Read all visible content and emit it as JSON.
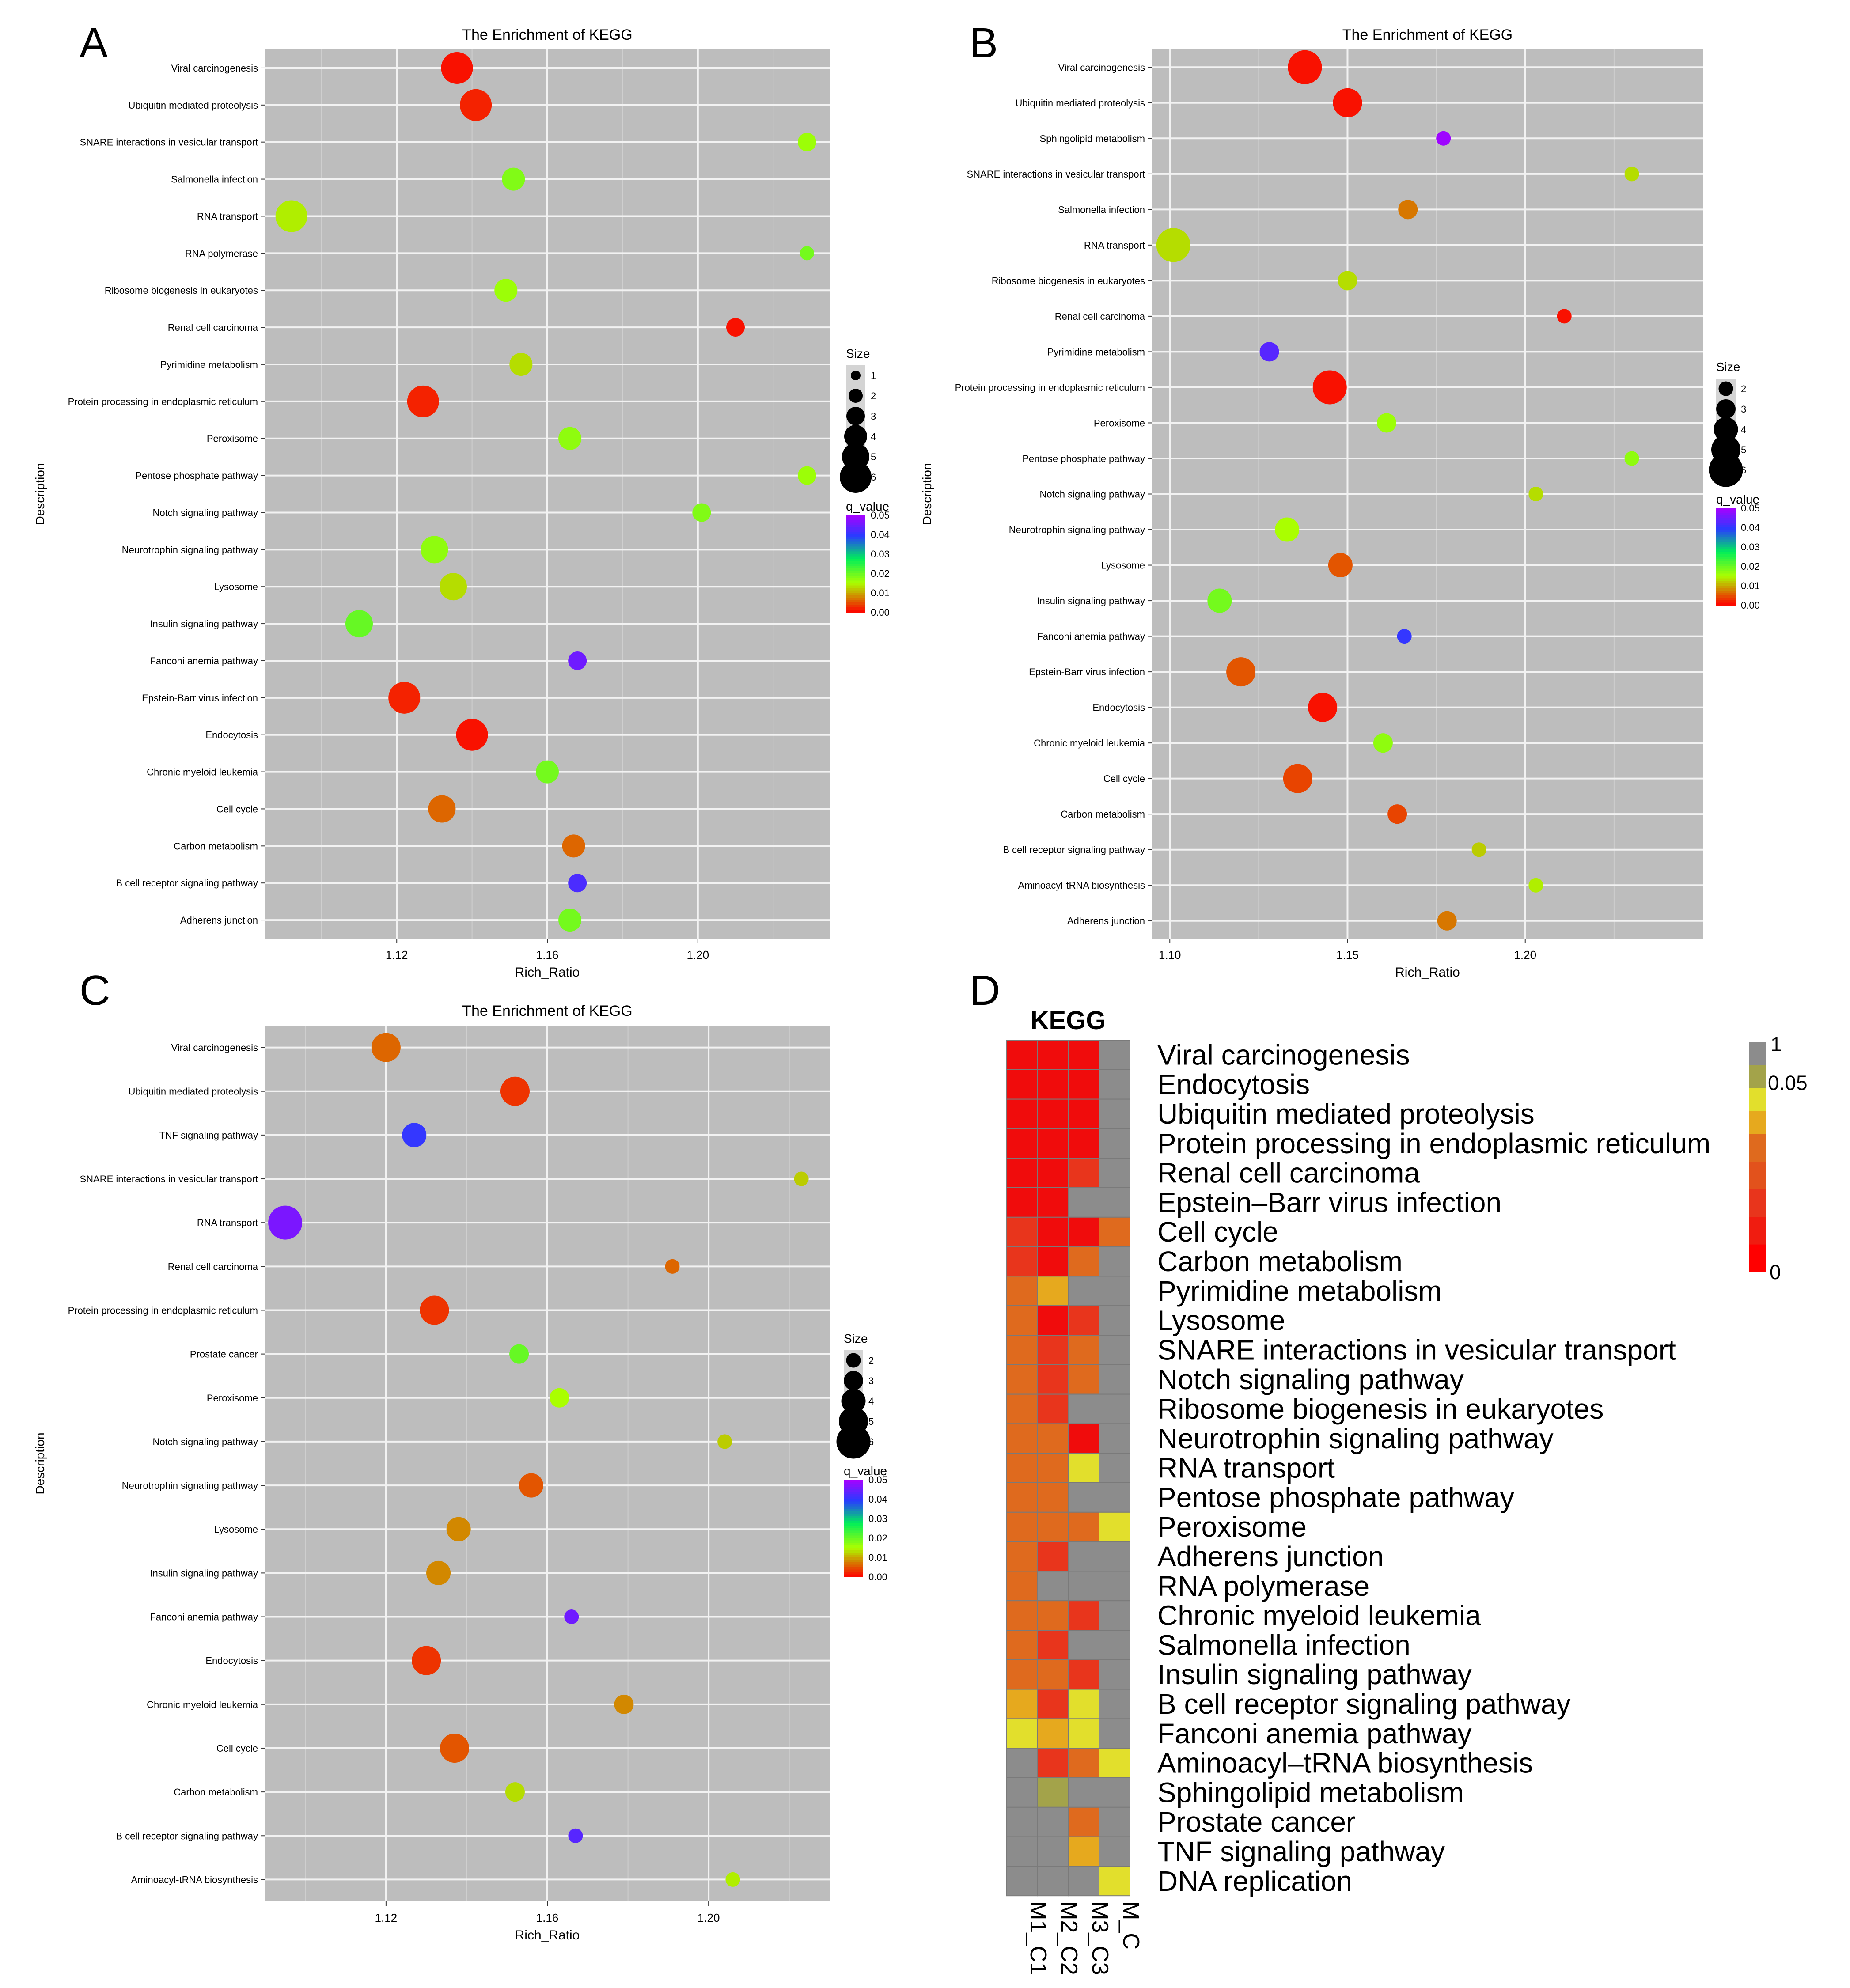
{
  "chart_data": [
    {
      "panel": "A",
      "type": "scatter",
      "title": "The Enrichment of KEGG",
      "xlabel": "Rich_Ratio",
      "ylabel": "Description",
      "xlim": [
        1.085,
        1.235
      ],
      "xticks": [
        1.12,
        1.16,
        1.2
      ],
      "xtick_labels": [
        "1.12",
        "1.16",
        "1.20"
      ],
      "grid": true,
      "size_legend": {
        "title": "Size",
        "values": [
          1,
          2,
          3,
          4,
          5,
          6
        ]
      },
      "color_legend": {
        "title": "q_value",
        "ticks": [
          "0.05",
          "0.04",
          "0.03",
          "0.02",
          "0.01",
          "0.00"
        ]
      },
      "points": [
        {
          "label": "Viral carcinogenesis",
          "x": 1.136,
          "size": 6,
          "q": 0.001
        },
        {
          "label": "Ubiquitin mediated proteolysis",
          "x": 1.141,
          "size": 6,
          "q": 0.002
        },
        {
          "label": "SNARE interactions in vesicular transport",
          "x": 1.229,
          "size": 3,
          "q": 0.016
        },
        {
          "label": "Salmonella infection",
          "x": 1.151,
          "size": 4,
          "q": 0.018
        },
        {
          "label": "RNA transport",
          "x": 1.092,
          "size": 6,
          "q": 0.014
        },
        {
          "label": "RNA polymerase",
          "x": 1.229,
          "size": 2,
          "q": 0.019
        },
        {
          "label": "Ribosome biogenesis in eukaryotes",
          "x": 1.149,
          "size": 4,
          "q": 0.016
        },
        {
          "label": "Renal cell carcinoma",
          "x": 1.21,
          "size": 3,
          "q": 0.001
        },
        {
          "label": "Pyrimidine metabolism",
          "x": 1.153,
          "size": 4,
          "q": 0.013
        },
        {
          "label": "Protein processing in endoplasmic reticulum",
          "x": 1.127,
          "size": 6,
          "q": 0.002
        },
        {
          "label": "Peroxisome",
          "x": 1.166,
          "size": 4,
          "q": 0.017
        },
        {
          "label": "Pentose phosphate pathway",
          "x": 1.229,
          "size": 3,
          "q": 0.016
        },
        {
          "label": "Notch signaling pathway",
          "x": 1.201,
          "size": 3,
          "q": 0.018
        },
        {
          "label": "Neurotrophin signaling pathway",
          "x": 1.13,
          "size": 5,
          "q": 0.017
        },
        {
          "label": "Lysosome",
          "x": 1.135,
          "size": 5,
          "q": 0.013
        },
        {
          "label": "Insulin signaling pathway",
          "x": 1.11,
          "size": 5,
          "q": 0.02
        },
        {
          "label": "Fanconi anemia pathway",
          "x": 1.168,
          "size": 3,
          "q": 0.045
        },
        {
          "label": "Epstein-Barr virus infection",
          "x": 1.122,
          "size": 6,
          "q": 0.002
        },
        {
          "label": "Endocytosis",
          "x": 1.14,
          "size": 6,
          "q": 0.001
        },
        {
          "label": "Chronic myeloid leukemia",
          "x": 1.16,
          "size": 4,
          "q": 0.019
        },
        {
          "label": "Cell cycle",
          "x": 1.132,
          "size": 5,
          "q": 0.006
        },
        {
          "label": "Carbon metabolism",
          "x": 1.167,
          "size": 4,
          "q": 0.006
        },
        {
          "label": "B cell receptor signaling pathway",
          "x": 1.168,
          "size": 3,
          "q": 0.042
        },
        {
          "label": "Adherens junction",
          "x": 1.166,
          "size": 4,
          "q": 0.019
        }
      ]
    },
    {
      "panel": "B",
      "type": "scatter",
      "title": "The Enrichment of KEGG",
      "xlabel": "Rich_Ratio",
      "ylabel": "Description",
      "xlim": [
        1.095,
        1.25
      ],
      "xticks": [
        1.1,
        1.15,
        1.2
      ],
      "xtick_labels": [
        "1.10",
        "1.15",
        "1.20"
      ],
      "grid": true,
      "size_legend": {
        "title": "Size",
        "values": [
          2,
          3,
          4,
          5,
          6
        ]
      },
      "color_legend": {
        "title": "q_value",
        "ticks": [
          "0.05",
          "0.04",
          "0.03",
          "0.02",
          "0.01",
          "0.00"
        ]
      },
      "points": [
        {
          "label": "Viral carcinogenesis",
          "x": 1.138,
          "size": 6,
          "q": 0.001
        },
        {
          "label": "Ubiquitin mediated proteolysis",
          "x": 1.15,
          "size": 5,
          "q": 0.001
        },
        {
          "label": "Sphingolipid metabolism",
          "x": 1.177,
          "size": 2,
          "q": 0.049
        },
        {
          "label": "SNARE interactions in vesicular transport",
          "x": 1.23,
          "size": 2,
          "q": 0.013
        },
        {
          "label": "Salmonella infection",
          "x": 1.167,
          "size": 3,
          "q": 0.007
        },
        {
          "label": "RNA transport",
          "x": 1.101,
          "size": 6,
          "q": 0.013
        },
        {
          "label": "Ribosome biogenesis in eukaryotes",
          "x": 1.15,
          "size": 3,
          "q": 0.013
        },
        {
          "label": "Renal cell carcinoma",
          "x": 1.211,
          "size": 2,
          "q": 0.001
        },
        {
          "label": "Pyrimidine metabolism",
          "x": 1.128,
          "size": 3,
          "q": 0.043
        },
        {
          "label": "Protein processing in endoplasmic reticulum",
          "x": 1.145,
          "size": 6,
          "q": 0.001
        },
        {
          "label": "Peroxisome",
          "x": 1.161,
          "size": 3,
          "q": 0.016
        },
        {
          "label": "Pentose phosphate pathway",
          "x": 1.23,
          "size": 2,
          "q": 0.017
        },
        {
          "label": "Notch signaling pathway",
          "x": 1.203,
          "size": 2,
          "q": 0.013
        },
        {
          "label": "Neurotrophin signaling pathway",
          "x": 1.133,
          "size": 4,
          "q": 0.015
        },
        {
          "label": "Lysosome",
          "x": 1.148,
          "size": 4,
          "q": 0.005
        },
        {
          "label": "Insulin signaling pathway",
          "x": 1.114,
          "size": 4,
          "q": 0.019
        },
        {
          "label": "Fanconi anemia pathway",
          "x": 1.166,
          "size": 2,
          "q": 0.04
        },
        {
          "label": "Epstein-Barr virus infection",
          "x": 1.12,
          "size": 5,
          "q": 0.005
        },
        {
          "label": "Endocytosis",
          "x": 1.143,
          "size": 5,
          "q": 0.001
        },
        {
          "label": "Chronic myeloid leukemia",
          "x": 1.16,
          "size": 3,
          "q": 0.017
        },
        {
          "label": "Cell cycle",
          "x": 1.136,
          "size": 5,
          "q": 0.004
        },
        {
          "label": "Carbon metabolism",
          "x": 1.164,
          "size": 3,
          "q": 0.004
        },
        {
          "label": "B cell receptor signaling pathway",
          "x": 1.187,
          "size": 2,
          "q": 0.012
        },
        {
          "label": "Aminoacyl-tRNA biosynthesis",
          "x": 1.203,
          "size": 2,
          "q": 0.014
        },
        {
          "label": "Adherens junction",
          "x": 1.178,
          "size": 3,
          "q": 0.007
        }
      ]
    },
    {
      "panel": "C",
      "type": "scatter",
      "title": "The Enrichment of KEGG",
      "xlabel": "Rich_Ratio",
      "ylabel": "Description",
      "xlim": [
        1.09,
        1.23
      ],
      "xticks": [
        1.12,
        1.16,
        1.2
      ],
      "xtick_labels": [
        "1.12",
        "1.16",
        "1.20"
      ],
      "grid": true,
      "size_legend": {
        "title": "Size",
        "values": [
          2,
          3,
          4,
          5,
          6
        ]
      },
      "color_legend": {
        "title": "q_value",
        "ticks": [
          "0.05",
          "0.04",
          "0.03",
          "0.02",
          "0.01",
          "0.00"
        ]
      },
      "points": [
        {
          "label": "Viral carcinogenesis",
          "x": 1.12,
          "size": 5,
          "q": 0.006
        },
        {
          "label": "Ubiquitin mediated proteolysis",
          "x": 1.152,
          "size": 5,
          "q": 0.003
        },
        {
          "label": "TNF signaling pathway",
          "x": 1.127,
          "size": 4,
          "q": 0.04
        },
        {
          "label": "SNARE interactions in vesicular transport",
          "x": 1.223,
          "size": 2,
          "q": 0.012
        },
        {
          "label": "RNA transport",
          "x": 1.095,
          "size": 6,
          "q": 0.046
        },
        {
          "label": "Renal cell carcinoma",
          "x": 1.191,
          "size": 2,
          "q": 0.006
        },
        {
          "label": "Protein processing in endoplasmic reticulum",
          "x": 1.132,
          "size": 5,
          "q": 0.003
        },
        {
          "label": "Prostate cancer",
          "x": 1.153,
          "size": 3,
          "q": 0.02
        },
        {
          "label": "Peroxisome",
          "x": 1.163,
          "size": 3,
          "q": 0.015
        },
        {
          "label": "Notch signaling pathway",
          "x": 1.204,
          "size": 2,
          "q": 0.012
        },
        {
          "label": "Neurotrophin signaling pathway",
          "x": 1.156,
          "size": 4,
          "q": 0.005
        },
        {
          "label": "Lysosome",
          "x": 1.138,
          "size": 4,
          "q": 0.008
        },
        {
          "label": "Insulin signaling pathway",
          "x": 1.133,
          "size": 4,
          "q": 0.008
        },
        {
          "label": "Fanconi anemia pathway",
          "x": 1.166,
          "size": 2,
          "q": 0.045
        },
        {
          "label": "Endocytosis",
          "x": 1.13,
          "size": 5,
          "q": 0.003
        },
        {
          "label": "Chronic myeloid leukemia",
          "x": 1.179,
          "size": 3,
          "q": 0.008
        },
        {
          "label": "Cell cycle",
          "x": 1.137,
          "size": 5,
          "q": 0.005
        },
        {
          "label": "Carbon metabolism",
          "x": 1.152,
          "size": 3,
          "q": 0.013
        },
        {
          "label": "B cell receptor signaling pathway",
          "x": 1.167,
          "size": 2,
          "q": 0.043
        },
        {
          "label": "Aminoacyl-tRNA biosynthesis",
          "x": 1.206,
          "size": 2,
          "q": 0.014
        }
      ]
    },
    {
      "panel": "D",
      "type": "heatmap",
      "title": "KEGG",
      "columns": [
        "M1_C1",
        "M2_C2",
        "M3_C3",
        "M_C"
      ],
      "color_legend": {
        "top": "1",
        "mid": "0.05",
        "bottom": "0"
      },
      "palette": {
        "gray": "#8c8c8c",
        "olive": "#a3a34a",
        "yellow": "#e2df2c",
        "gold": "#e6a91e",
        "orange": "#df6a1e",
        "red_orange": "#e8351c",
        "red": "#f00c0c"
      },
      "rows": [
        {
          "label": "Viral carcinogenesis",
          "cells": [
            "red",
            "red",
            "red",
            "gray"
          ]
        },
        {
          "label": "Endocytosis",
          "cells": [
            "red",
            "red",
            "red",
            "gray"
          ]
        },
        {
          "label": "Ubiquitin mediated proteolysis",
          "cells": [
            "red",
            "red",
            "red",
            "gray"
          ]
        },
        {
          "label": "Protein processing in endoplasmic reticulum",
          "cells": [
            "red",
            "red",
            "red",
            "gray"
          ]
        },
        {
          "label": "Renal cell carcinoma",
          "cells": [
            "red",
            "red",
            "red_orange",
            "gray"
          ]
        },
        {
          "label": "Epstein–Barr virus infection",
          "cells": [
            "red",
            "red",
            "gray",
            "gray"
          ]
        },
        {
          "label": "Cell cycle",
          "cells": [
            "red_orange",
            "red",
            "red",
            "orange"
          ]
        },
        {
          "label": "Carbon metabolism",
          "cells": [
            "red_orange",
            "red",
            "orange",
            "gray"
          ]
        },
        {
          "label": "Pyrimidine metabolism",
          "cells": [
            "orange",
            "gold",
            "gray",
            "gray"
          ]
        },
        {
          "label": "Lysosome",
          "cells": [
            "orange",
            "red",
            "red_orange",
            "gray"
          ]
        },
        {
          "label": "SNARE interactions in vesicular transport",
          "cells": [
            "orange",
            "red_orange",
            "orange",
            "gray"
          ]
        },
        {
          "label": "Notch signaling pathway",
          "cells": [
            "orange",
            "red_orange",
            "orange",
            "gray"
          ]
        },
        {
          "label": "Ribosome biogenesis in eukaryotes",
          "cells": [
            "orange",
            "red_orange",
            "gray",
            "gray"
          ]
        },
        {
          "label": "Neurotrophin signaling pathway",
          "cells": [
            "orange",
            "orange",
            "red",
            "gray"
          ]
        },
        {
          "label": "RNA transport",
          "cells": [
            "orange",
            "orange",
            "yellow",
            "gray"
          ]
        },
        {
          "label": "Pentose phosphate pathway",
          "cells": [
            "orange",
            "orange",
            "gray",
            "gray"
          ]
        },
        {
          "label": "Peroxisome",
          "cells": [
            "orange",
            "orange",
            "orange",
            "yellow"
          ]
        },
        {
          "label": "Adherens junction",
          "cells": [
            "orange",
            "red_orange",
            "gray",
            "gray"
          ]
        },
        {
          "label": "RNA polymerase",
          "cells": [
            "orange",
            "gray",
            "gray",
            "gray"
          ]
        },
        {
          "label": "Chronic myeloid leukemia",
          "cells": [
            "orange",
            "orange",
            "red_orange",
            "gray"
          ]
        },
        {
          "label": "Salmonella infection",
          "cells": [
            "orange",
            "red_orange",
            "gray",
            "gray"
          ]
        },
        {
          "label": "Insulin signaling pathway",
          "cells": [
            "orange",
            "orange",
            "red_orange",
            "gray"
          ]
        },
        {
          "label": "B cell receptor signaling pathway",
          "cells": [
            "gold",
            "red_orange",
            "yellow",
            "gray"
          ]
        },
        {
          "label": "Fanconi anemia pathway",
          "cells": [
            "yellow",
            "gold",
            "yellow",
            "gray"
          ]
        },
        {
          "label": "Aminoacyl–tRNA biosynthesis",
          "cells": [
            "gray",
            "red_orange",
            "orange",
            "yellow"
          ]
        },
        {
          "label": "Sphingolipid metabolism",
          "cells": [
            "gray",
            "olive",
            "gray",
            "gray"
          ]
        },
        {
          "label": "Prostate cancer",
          "cells": [
            "gray",
            "gray",
            "orange",
            "gray"
          ]
        },
        {
          "label": "TNF signaling pathway",
          "cells": [
            "gray",
            "gray",
            "gold",
            "gray"
          ]
        },
        {
          "label": "DNA replication",
          "cells": [
            "gray",
            "gray",
            "gray",
            "yellow"
          ]
        }
      ]
    }
  ]
}
